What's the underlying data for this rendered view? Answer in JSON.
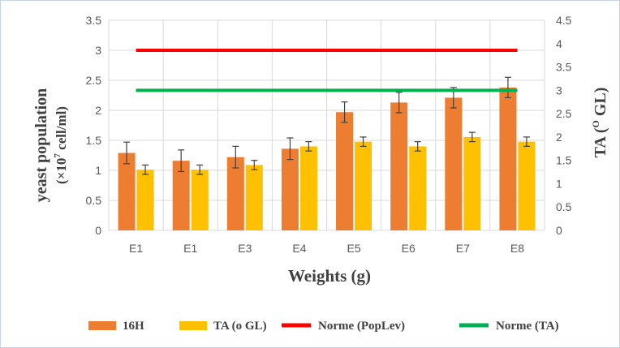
{
  "chart_data": {
    "type": "bar",
    "categories": [
      "E1",
      "E1",
      "E3",
      "E4",
      "E5",
      "E6",
      "E7",
      "E8"
    ],
    "series": [
      {
        "name": "16H",
        "axis": "left",
        "color": "#ED7D31",
        "values": [
          1.29,
          1.16,
          1.22,
          1.36,
          1.97,
          2.13,
          2.21,
          2.38
        ],
        "error": [
          0.18,
          0.18,
          0.18,
          0.18,
          0.17,
          0.17,
          0.17,
          0.17
        ]
      },
      {
        "name": "TA (o GL)",
        "axis": "right",
        "color": "#FFC000",
        "values": [
          1.3,
          1.3,
          1.4,
          1.8,
          1.9,
          1.8,
          2.0,
          1.9
        ],
        "error": [
          0.1,
          0.1,
          0.1,
          0.1,
          0.1,
          0.1,
          0.1,
          0.1
        ]
      }
    ],
    "reference_lines": [
      {
        "name": "Norme (PopLev)",
        "axis": "left",
        "value": 3.0,
        "color": "#FF0000"
      },
      {
        "name": "Norme (TA)",
        "axis": "right",
        "value": 3.0,
        "color": "#00B050"
      }
    ],
    "xlabel": "Weights (g)",
    "ylabel_left": "yeast population",
    "ylabel_left_line2": "(×10",
    "ylabel_left_sup": "7",
    "ylabel_left_line2_end": " cell/ml)",
    "ylabel_right_prefix": "TA (",
    "ylabel_right_sup": "O",
    "ylabel_right_suffix": " GL)",
    "ylim_left": [
      0,
      3.5
    ],
    "yticks_left": [
      "0",
      "0.5",
      "1",
      "1.5",
      "2",
      "2.5",
      "3",
      "3.5"
    ],
    "ylim_right": [
      0,
      4.5
    ],
    "yticks_right": [
      "0",
      "0.5",
      "1",
      "1.5",
      "2",
      "2.5",
      "3",
      "3.5",
      "4",
      "4.5"
    ],
    "grid": true,
    "legend_position": "bottom"
  }
}
